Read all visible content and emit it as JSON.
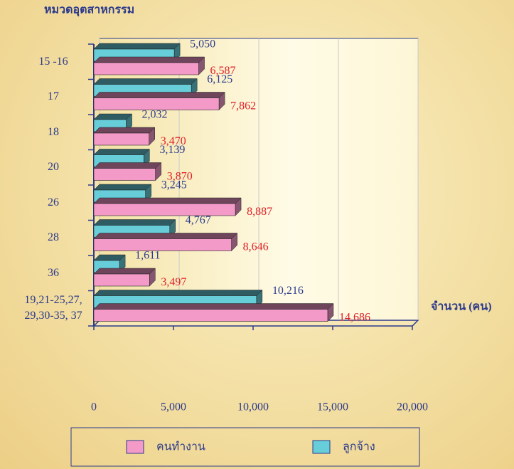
{
  "chart_data": {
    "type": "bar",
    "orientation": "horizontal",
    "title": "หมวดอุตสาหกรรม",
    "x_label": "จำนวน (คน)",
    "categories": [
      "15 -16",
      "17",
      "18",
      "20",
      "26",
      "28",
      "36",
      "19,21-25,27,\n29,30-35, 37"
    ],
    "series": [
      {
        "name": "คนทำงาน",
        "color": "#f49ac9",
        "values": [
          6587,
          7862,
          3470,
          3870,
          8887,
          8646,
          3497,
          14686
        ],
        "value_labels": [
          "6,587",
          "7,862",
          "3,470",
          "3,870",
          "8,887",
          "8,646",
          "3,497",
          "14,686"
        ]
      },
      {
        "name": "ลูกจ้าง",
        "color": "#66cdd9",
        "values": [
          5050,
          6125,
          2032,
          3139,
          3245,
          4767,
          1611,
          10216
        ],
        "value_labels": [
          "5,050",
          "6,125",
          "2,032",
          "3,139",
          "3,245",
          "4,767",
          "1,611",
          "10,216"
        ]
      }
    ],
    "xlim": [
      0,
      20000
    ],
    "xticks": [
      0,
      {
        "value": 5000,
        "label": "5,000"
      },
      {
        "value": 10000,
        "label": "10,000"
      },
      {
        "value": 15000,
        "label": "15,000"
      },
      {
        "value": 20000,
        "label": "20,000"
      }
    ],
    "grid": true
  }
}
